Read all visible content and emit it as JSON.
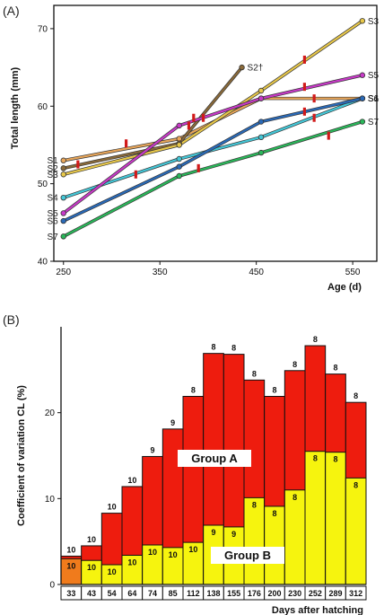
{
  "panels": {
    "a_label": "(A)",
    "b_label": "(B)"
  },
  "chart_data": [
    {
      "type": "line",
      "xlabel": "Age (d)",
      "ylabel": "Total length (mm)",
      "xlim": [
        240,
        575
      ],
      "ylim": [
        40,
        73
      ],
      "xticks": [
        250,
        350,
        450,
        550
      ],
      "yticks": [
        40,
        50,
        60,
        70
      ],
      "series": [
        {
          "name": "S1",
          "color": "#e8a65a",
          "points": [
            [
              250,
              53.0
            ],
            [
              370,
              55.8
            ],
            [
              455,
              61.0
            ],
            [
              560,
              61.0
            ]
          ],
          "markers": [
            [
              315,
              55.2
            ],
            [
              510,
              61.0
            ]
          ]
        },
        {
          "name": "S2†",
          "color": "#8a6a3a",
          "points": [
            [
              250,
              52.0
            ],
            [
              370,
              55.2
            ],
            [
              435,
              65.0
            ]
          ],
          "markers": [
            [
              265,
              52.5
            ],
            [
              380,
              57.5
            ]
          ]
        },
        {
          "name": "S3",
          "color": "#e8c84a",
          "points": [
            [
              250,
              51.2
            ],
            [
              370,
              55.0
            ],
            [
              455,
              62.0
            ],
            [
              560,
              71.0
            ]
          ],
          "markers": [
            [
              385,
              58.5
            ],
            [
              500,
              66.0
            ]
          ]
        },
        {
          "name": "S4",
          "color": "#44c8d8",
          "points": [
            [
              250,
              48.2
            ],
            [
              370,
              53.2
            ],
            [
              455,
              56.0
            ],
            [
              560,
              61.0
            ]
          ],
          "markers": [
            [
              510,
              58.5
            ]
          ]
        },
        {
          "name": "S5",
          "color": "#c83ac8",
          "points": [
            [
              250,
              46.2
            ],
            [
              370,
              57.5
            ],
            [
              455,
              61.0
            ],
            [
              560,
              64.0
            ]
          ],
          "markers": [
            [
              395,
              58.5
            ],
            [
              500,
              62.5
            ]
          ]
        },
        {
          "name": "S6",
          "color": "#2a6ab8",
          "points": [
            [
              250,
              45.2
            ],
            [
              370,
              52.2
            ],
            [
              455,
              58.0
            ],
            [
              560,
              61.0
            ]
          ],
          "markers": [
            [
              500,
              59.3
            ]
          ]
        },
        {
          "name": "S7",
          "color": "#2ab85a",
          "points": [
            [
              250,
              43.2
            ],
            [
              370,
              51.0
            ],
            [
              455,
              54.0
            ],
            [
              560,
              58.0
            ]
          ],
          "markers": [
            [
              325,
              51.2
            ],
            [
              390,
              52.0
            ],
            [
              525,
              56.2
            ]
          ]
        }
      ]
    },
    {
      "type": "bar",
      "xlabel": "Days after hatching",
      "ylabel": "Coefficient of variation CL (%)",
      "ylim": [
        0,
        30
      ],
      "yticks": [
        0,
        10,
        20
      ],
      "categories": [
        "33",
        "43",
        "54",
        "64",
        "74",
        "85",
        "112",
        "138",
        "155",
        "176",
        "200",
        "230",
        "252",
        "289",
        "312"
      ],
      "series": [
        {
          "name": "Group A",
          "color": "#ee1c0e",
          "values": [
            3.3,
            4.5,
            8.3,
            11.4,
            14.9,
            18.1,
            21.9,
            26.9,
            26.8,
            23.8,
            21.9,
            24.9,
            27.8,
            24.5,
            21.2
          ],
          "counts": [
            "10",
            "10",
            "10",
            "10",
            "9",
            "9",
            "8",
            "8",
            "8",
            "8",
            "8",
            "8",
            "8",
            "8",
            "8"
          ]
        },
        {
          "name": "Group B",
          "color": "#f6f40e",
          "first_color": "#f07b1c",
          "values": [
            3.0,
            2.8,
            2.3,
            3.4,
            4.6,
            4.3,
            4.9,
            6.9,
            6.7,
            10.1,
            9.1,
            11.0,
            15.5,
            15.4,
            12.4
          ],
          "counts": [
            "10",
            "10",
            "10",
            "10",
            "10",
            "10",
            "10",
            "9",
            "9",
            "8",
            "8",
            "8",
            "8",
            "8",
            "8"
          ]
        }
      ]
    }
  ]
}
